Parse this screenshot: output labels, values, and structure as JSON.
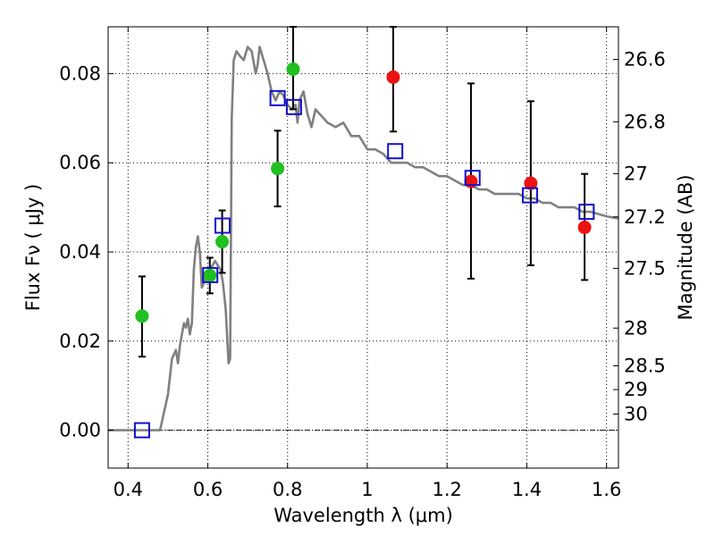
{
  "chart_data": {
    "type": "scatter",
    "xlabel": "Wavelength  λ (μm)",
    "ylabel": "Flux  Fν  ( μJy )",
    "y2label": "Magnitude (AB)",
    "xlim": [
      0.35,
      1.63
    ],
    "ylim": [
      -0.0085,
      0.0905
    ],
    "grid": true,
    "x_ticks": [
      {
        "v": 0.4,
        "label": "0.4"
      },
      {
        "v": 0.6,
        "label": "0.6"
      },
      {
        "v": 0.8,
        "label": "0.8"
      },
      {
        "v": 1.0,
        "label": "1"
      },
      {
        "v": 1.2,
        "label": "1.2"
      },
      {
        "v": 1.4,
        "label": "1.4"
      },
      {
        "v": 1.6,
        "label": "1.6"
      }
    ],
    "y_ticks": [
      {
        "v": 0.0,
        "label": "0.00"
      },
      {
        "v": 0.02,
        "label": "0.02"
      },
      {
        "v": 0.04,
        "label": "0.04"
      },
      {
        "v": 0.06,
        "label": "0.06"
      },
      {
        "v": 0.08,
        "label": "0.08"
      }
    ],
    "mag_ticks": [
      {
        "m": 26.6,
        "label": "26.6"
      },
      {
        "m": 26.8,
        "label": "26.8"
      },
      {
        "m": 27.0,
        "label": "27"
      },
      {
        "m": 27.2,
        "label": "27.2"
      },
      {
        "m": 27.5,
        "label": "27.5"
      },
      {
        "m": 28.0,
        "label": "28"
      },
      {
        "m": 28.5,
        "label": "28.5"
      },
      {
        "m": 29.0,
        "label": "29"
      },
      {
        "m": 30.0,
        "label": "30"
      }
    ],
    "colors": {
      "model": "#808080",
      "green": "#1fc01f",
      "red": "#ee1111",
      "square": "#1111cc",
      "errorbar": "#000000"
    },
    "series": [
      {
        "kind": "model-spectrum",
        "x": [
          0.35,
          0.48,
          0.49,
          0.5,
          0.51,
          0.52,
          0.525,
          0.53,
          0.54,
          0.545,
          0.55,
          0.555,
          0.56,
          0.565,
          0.57,
          0.575,
          0.58,
          0.585,
          0.595,
          0.605,
          0.612,
          0.618,
          0.625,
          0.632,
          0.638,
          0.645,
          0.652,
          0.656,
          0.66,
          0.665,
          0.672,
          0.68,
          0.69,
          0.7,
          0.71,
          0.72,
          0.725,
          0.73,
          0.74,
          0.75,
          0.76,
          0.77,
          0.78,
          0.79,
          0.8,
          0.81,
          0.82,
          0.825,
          0.83,
          0.84,
          0.85,
          0.86,
          0.87,
          0.88,
          0.89,
          0.9,
          0.92,
          0.94,
          0.96,
          0.98,
          1.0,
          1.02,
          1.04,
          1.06,
          1.08,
          1.1,
          1.12,
          1.14,
          1.16,
          1.18,
          1.2,
          1.22,
          1.24,
          1.26,
          1.28,
          1.3,
          1.32,
          1.34,
          1.36,
          1.38,
          1.4,
          1.42,
          1.44,
          1.46,
          1.48,
          1.5,
          1.52,
          1.54,
          1.56,
          1.58,
          1.6,
          1.63
        ],
        "y": [
          0.0,
          0.0,
          0.004,
          0.008,
          0.016,
          0.018,
          0.015,
          0.019,
          0.024,
          0.023,
          0.025,
          0.0215,
          0.024,
          0.036,
          0.041,
          0.0435,
          0.04,
          0.032,
          0.034,
          0.036,
          0.037,
          0.038,
          0.037,
          0.036,
          0.033,
          0.027,
          0.015,
          0.016,
          0.07,
          0.083,
          0.085,
          0.084,
          0.083,
          0.086,
          0.085,
          0.08,
          0.082,
          0.086,
          0.083,
          0.08,
          0.076,
          0.074,
          0.076,
          0.075,
          0.073,
          0.072,
          0.073,
          0.069,
          0.074,
          0.076,
          0.071,
          0.068,
          0.072,
          0.071,
          0.07,
          0.069,
          0.068,
          0.069,
          0.066,
          0.066,
          0.063,
          0.063,
          0.062,
          0.06,
          0.06,
          0.06,
          0.059,
          0.059,
          0.058,
          0.057,
          0.057,
          0.056,
          0.055,
          0.055,
          0.054,
          0.054,
          0.053,
          0.053,
          0.053,
          0.053,
          0.052,
          0.052,
          0.051,
          0.051,
          0.05,
          0.05,
          0.05,
          0.049,
          0.049,
          0.0485,
          0.048,
          0.0475
        ]
      },
      {
        "kind": "green-points",
        "points": [
          {
            "x": 0.435,
            "y": 0.0256,
            "lo": 0.0165,
            "hi": 0.0345
          },
          {
            "x": 0.605,
            "y": 0.0347,
            "lo": 0.0307,
            "hi": 0.0387
          },
          {
            "x": 0.636,
            "y": 0.0423,
            "lo": 0.0353,
            "hi": 0.0493
          },
          {
            "x": 0.775,
            "y": 0.0587,
            "lo": 0.0502,
            "hi": 0.0672
          },
          {
            "x": 0.814,
            "y": 0.081,
            "lo": 0.072,
            "hi": 0.0905
          }
        ]
      },
      {
        "kind": "red-points",
        "points": [
          {
            "x": 1.065,
            "y": 0.0792,
            "lo": 0.067,
            "hi": 0.0905
          },
          {
            "x": 1.26,
            "y": 0.0558,
            "lo": 0.034,
            "hi": 0.0778
          },
          {
            "x": 1.41,
            "y": 0.0554,
            "lo": 0.037,
            "hi": 0.0738
          },
          {
            "x": 1.545,
            "y": 0.0455,
            "lo": 0.0337,
            "hi": 0.0575
          }
        ]
      },
      {
        "kind": "model-bandpass-squares",
        "points": [
          {
            "x": 0.435,
            "y": 0.0
          },
          {
            "x": 0.606,
            "y": 0.0348
          },
          {
            "x": 0.637,
            "y": 0.0459
          },
          {
            "x": 0.775,
            "y": 0.0745
          },
          {
            "x": 0.816,
            "y": 0.0725
          },
          {
            "x": 1.07,
            "y": 0.0626
          },
          {
            "x": 1.264,
            "y": 0.0566
          },
          {
            "x": 1.408,
            "y": 0.0527
          },
          {
            "x": 1.55,
            "y": 0.049
          }
        ]
      }
    ]
  }
}
